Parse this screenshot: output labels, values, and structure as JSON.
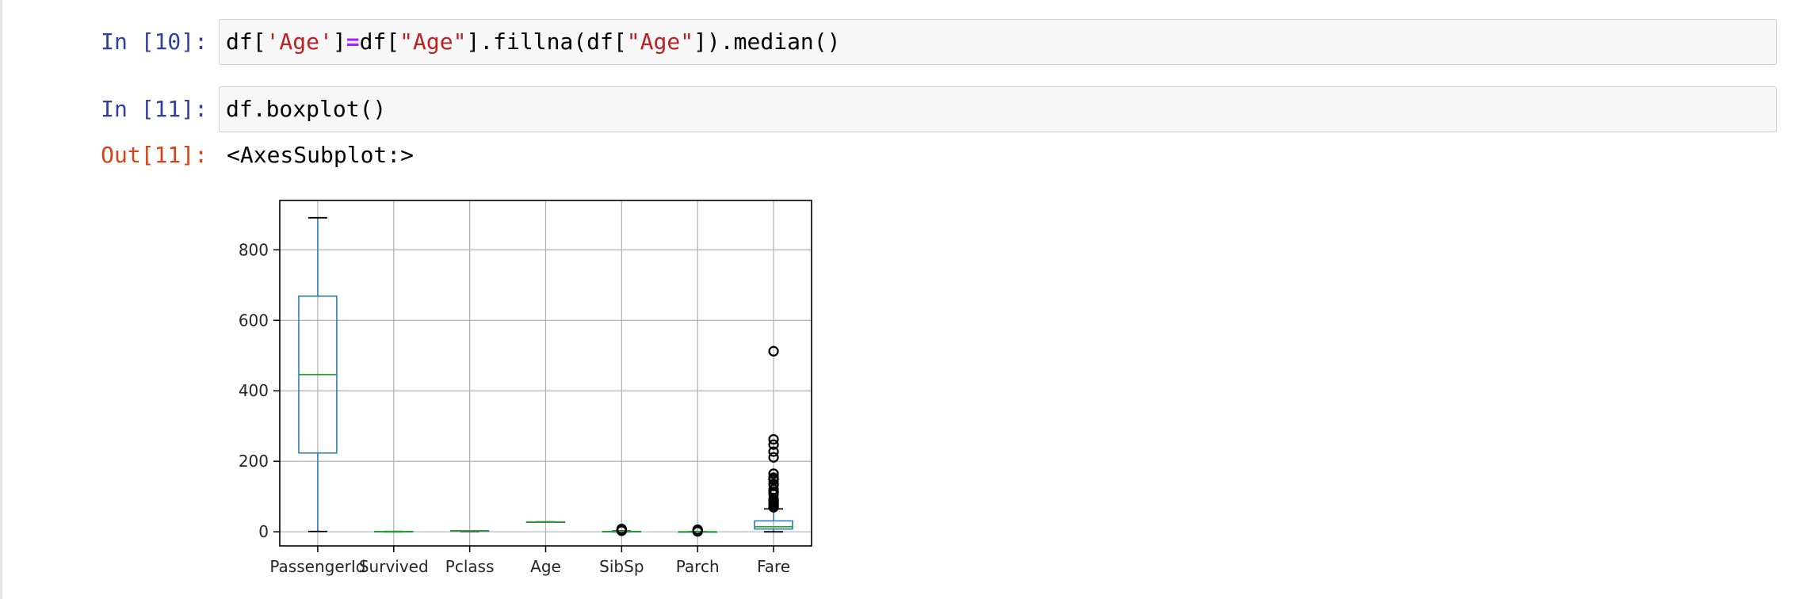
{
  "cells": [
    {
      "prompt": "In [10]:",
      "code_parts": [
        {
          "text": "df[",
          "kind": "plain"
        },
        {
          "text": "'Age'",
          "kind": "str"
        },
        {
          "text": "]",
          "kind": "plain"
        },
        {
          "text": "=",
          "kind": "op"
        },
        {
          "text": "df[",
          "kind": "plain"
        },
        {
          "text": "\"Age\"",
          "kind": "str"
        },
        {
          "text": "].fillna(df[",
          "kind": "plain"
        },
        {
          "text": "\"Age\"",
          "kind": "str"
        },
        {
          "text": "]).median()",
          "kind": "plain"
        }
      ]
    },
    {
      "prompt": "In [11]:",
      "code_parts": [
        {
          "text": "df.boxplot()",
          "kind": "plain"
        }
      ]
    }
  ],
  "output": {
    "prompt": "Out[11]:",
    "text": "<AxesSubplot:>"
  },
  "colors": {
    "box": "#1f77b4",
    "median": "#2ca02c",
    "grid": "#b0b0b0",
    "in_prompt": "#303f9f",
    "out_prompt": "#d84315"
  },
  "chart_data": {
    "type": "box",
    "categories": [
      "PassengerId",
      "Survived",
      "Pclass",
      "Age",
      "SibSp",
      "Parch",
      "Fare"
    ],
    "ylim": [
      -40,
      940
    ],
    "yticks": [
      0,
      200,
      400,
      600,
      800
    ],
    "grid": true,
    "boxes": [
      {
        "whisker_low": 1,
        "q1": 223.5,
        "median": 446,
        "q3": 668.5,
        "whisker_high": 891,
        "fliers": []
      },
      {
        "whisker_low": 0,
        "q1": 0,
        "median": 0,
        "q3": 1,
        "whisker_high": 1,
        "fliers": []
      },
      {
        "whisker_low": 1,
        "q1": 2,
        "median": 3,
        "q3": 3,
        "whisker_high": 3,
        "fliers": []
      },
      {
        "whisker_low": 28,
        "q1": 28,
        "median": 28,
        "q3": 28,
        "whisker_high": 28,
        "fliers": []
      },
      {
        "whisker_low": 0,
        "q1": 0,
        "median": 0,
        "q3": 1,
        "whisker_high": 2,
        "fliers": [
          3,
          4,
          5,
          8
        ]
      },
      {
        "whisker_low": 0,
        "q1": 0,
        "median": 0,
        "q3": 0,
        "whisker_high": 0,
        "fliers": [
          1,
          2,
          3,
          4,
          5,
          6
        ]
      },
      {
        "whisker_low": 0,
        "q1": 7.9,
        "median": 14.45,
        "q3": 31,
        "whisker_high": 65,
        "fliers": [
          69.55,
          71.3,
          73.5,
          77.3,
          79.2,
          82.2,
          86.5,
          90,
          93.5,
          106.4,
          110.9,
          113.3,
          120,
          133.7,
          135.6,
          146.5,
          151.55,
          153.5,
          164.9,
          211.3,
          227.5,
          247.5,
          262.4,
          512.3
        ]
      }
    ]
  }
}
